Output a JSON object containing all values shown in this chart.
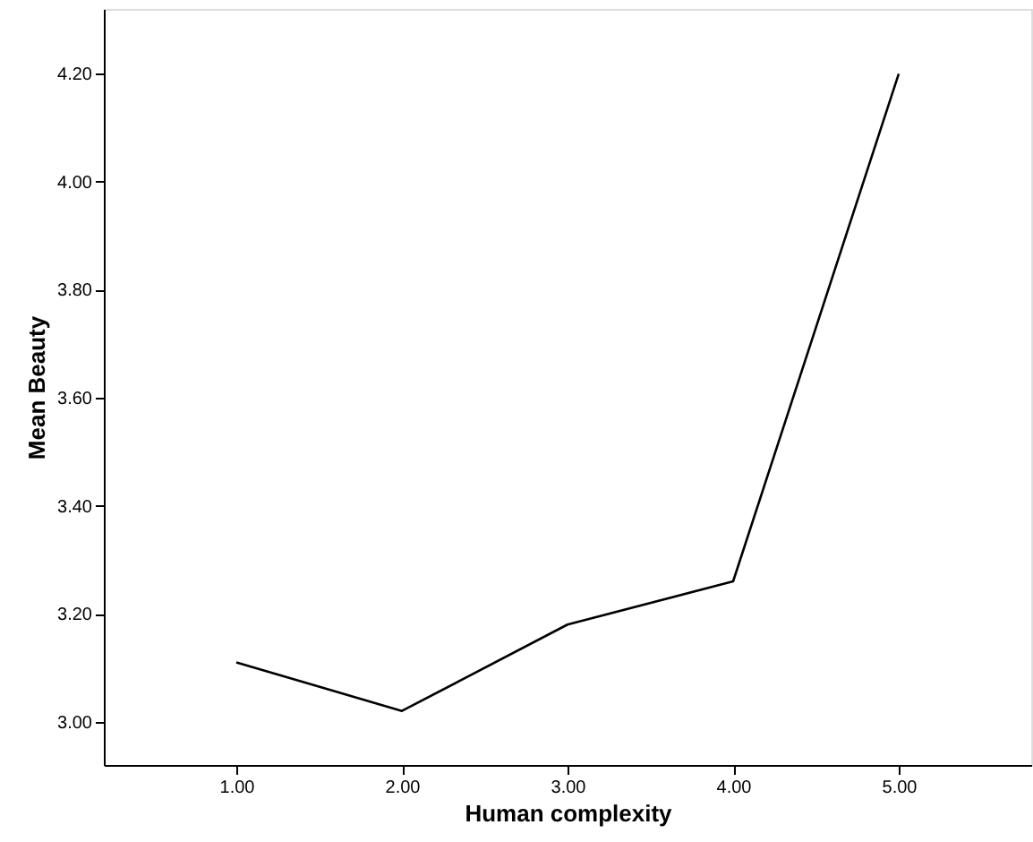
{
  "chart_data": {
    "type": "line",
    "xlabel": "Human complexity",
    "ylabel": "Mean Beauty",
    "categories": [
      "1.00",
      "2.00",
      "3.00",
      "4.00",
      "5.00"
    ],
    "series": [
      {
        "color": "#000000",
        "values": [
          3.11,
          3.02,
          3.18,
          3.26,
          4.2
        ]
      }
    ],
    "ylim": [
      2.92,
      4.32
    ],
    "yticks": [
      {
        "value": 3.0,
        "label": "3.00"
      },
      {
        "value": 3.2,
        "label": "3.20"
      },
      {
        "value": 3.4,
        "label": "3.40"
      },
      {
        "value": 3.6,
        "label": "3.60"
      },
      {
        "value": 3.8,
        "label": "3.80"
      },
      {
        "value": 4.0,
        "label": "4.00"
      },
      {
        "value": 4.2,
        "label": "4.20"
      }
    ],
    "grid": false,
    "marker": "none",
    "line_style": "solid"
  }
}
